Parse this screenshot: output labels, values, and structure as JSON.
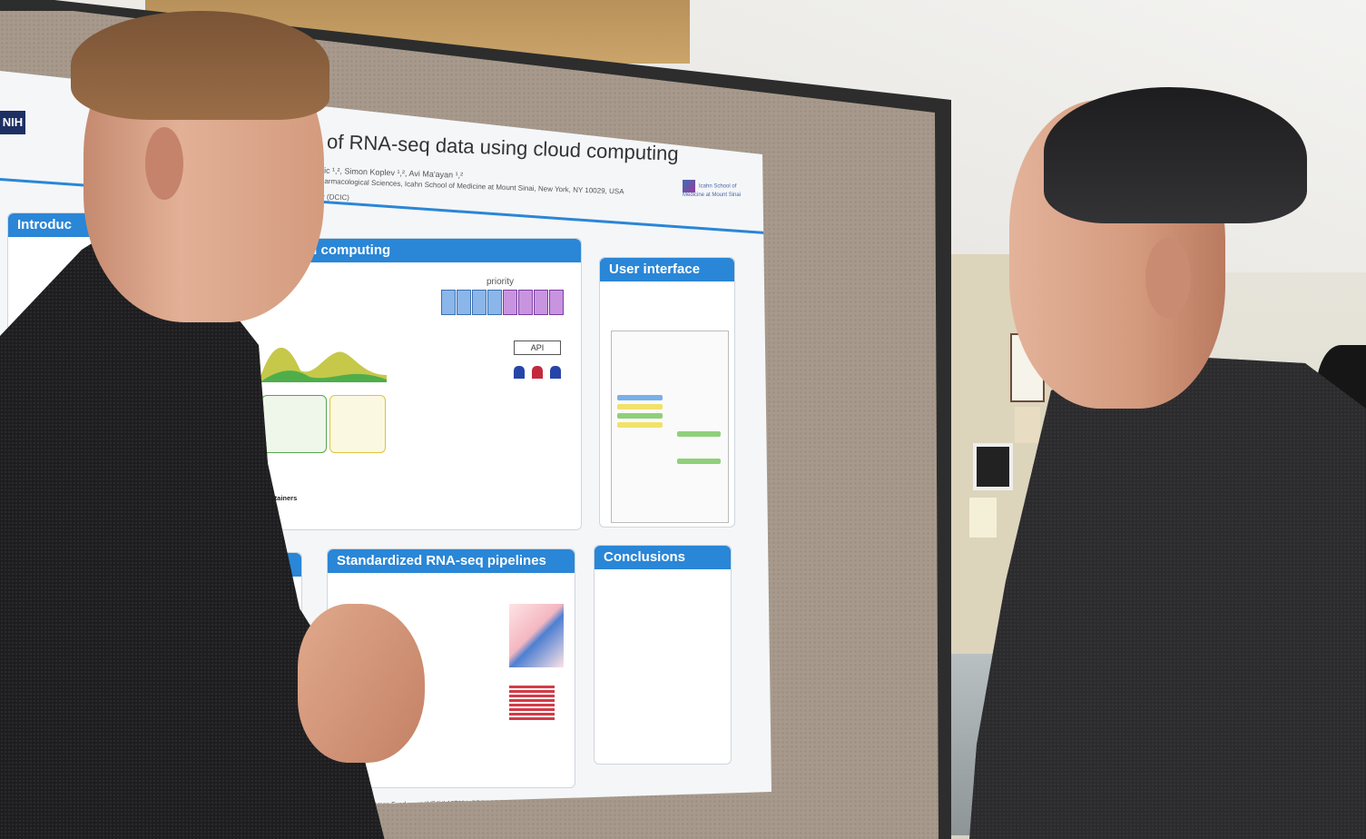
{
  "poster": {
    "title": "of RNA-seq data using cloud computing",
    "authors": "...avic ¹,², Simon Koplev ¹,², Avi Ma'ayan ¹,²",
    "affiliation": "...ment of Pharmacological Sciences, Icahn School of Medicine at Mount Sinai, New York, NY 10029, USA",
    "affiliation2": "...tion Center (DCIC)",
    "left_logo": "NIH",
    "right_logo": "Icahn School of Medicine at Mount Sinai",
    "sections": {
      "intro": "Introduc",
      "cloud": "ud computing",
      "user_interface": "User interface",
      "pipelines": "Standardized RNA-seq pipelines",
      "conclusions": "Conclusions"
    },
    "labels": {
      "priority": "priority",
      "api": "API",
      "containers": "ker containers"
    },
    "funding": "...Common Fund grant #U54HL127624: BD2K-LINCS DCIC."
  },
  "colors": {
    "poster_accent": "#2a86d6",
    "cork": "#a79a8d",
    "board_frame": "#2d2d2d"
  }
}
